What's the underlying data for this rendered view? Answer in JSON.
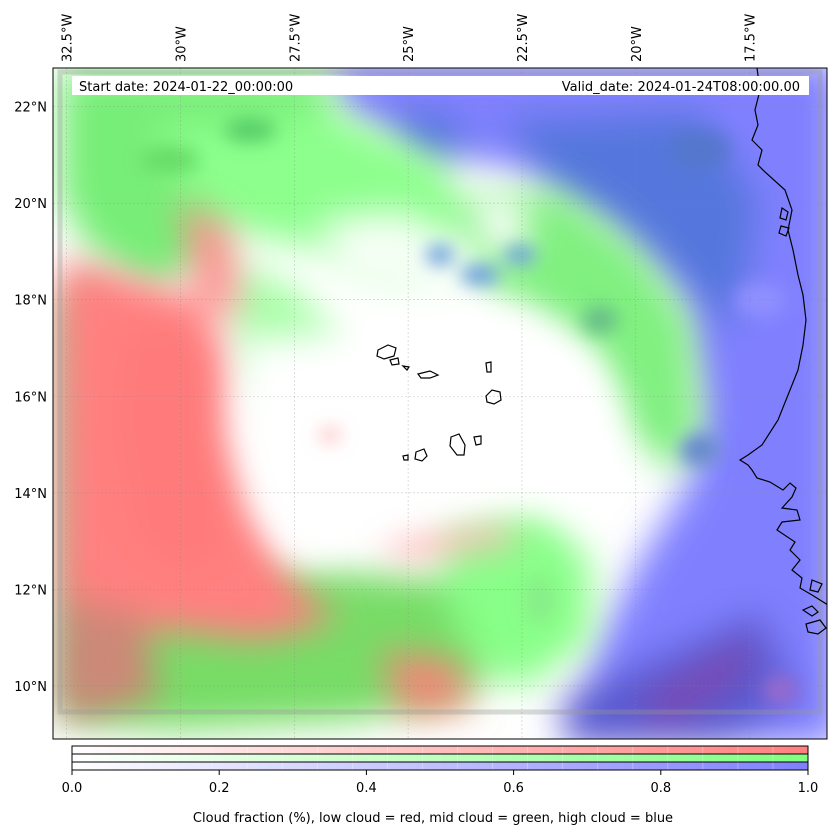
{
  "header": {
    "start_label": "Start date: 2024-01-22_00:00:00",
    "valid_label": "Valid_date: 2024-01-24T08:00:00.00"
  },
  "map": {
    "lon_range": [
      -32.8,
      -15.8
    ],
    "lat_range": [
      8.9,
      22.8
    ],
    "lon_ticks": [
      {
        "value": -32.5,
        "label": "32.5°W"
      },
      {
        "value": -30.0,
        "label": "30°W"
      },
      {
        "value": -27.5,
        "label": "27.5°W"
      },
      {
        "value": -25.0,
        "label": "25°W"
      },
      {
        "value": -22.5,
        "label": "22.5°W"
      },
      {
        "value": -20.0,
        "label": "20°W"
      },
      {
        "value": -17.5,
        "label": "17.5°W"
      }
    ],
    "lat_ticks": [
      {
        "value": 22,
        "label": "22°N"
      },
      {
        "value": 20,
        "label": "20°N"
      },
      {
        "value": 18,
        "label": "18°N"
      },
      {
        "value": 16,
        "label": "16°N"
      },
      {
        "value": 14,
        "label": "14°N"
      },
      {
        "value": 12,
        "label": "12°N"
      },
      {
        "value": 10,
        "label": "10°N"
      }
    ],
    "gridlines": true,
    "colors": {
      "low_cloud": "#ff7f7f",
      "mid_cloud": "#7fff7f",
      "high_cloud": "#7f7fff",
      "coast": "#000000"
    }
  },
  "colorbar": {
    "min": 0.0,
    "max": 1.0,
    "ticks": [
      {
        "value": 0.0,
        "label": "0.0"
      },
      {
        "value": 0.2,
        "label": "0.2"
      },
      {
        "value": 0.4,
        "label": "0.4"
      },
      {
        "value": 0.6,
        "label": "0.6"
      },
      {
        "value": 0.8,
        "label": "0.8"
      },
      {
        "value": 1.0,
        "label": "1.0"
      }
    ],
    "label": "Cloud fraction (%), low cloud = red, mid cloud = green, high cloud = blue"
  }
}
